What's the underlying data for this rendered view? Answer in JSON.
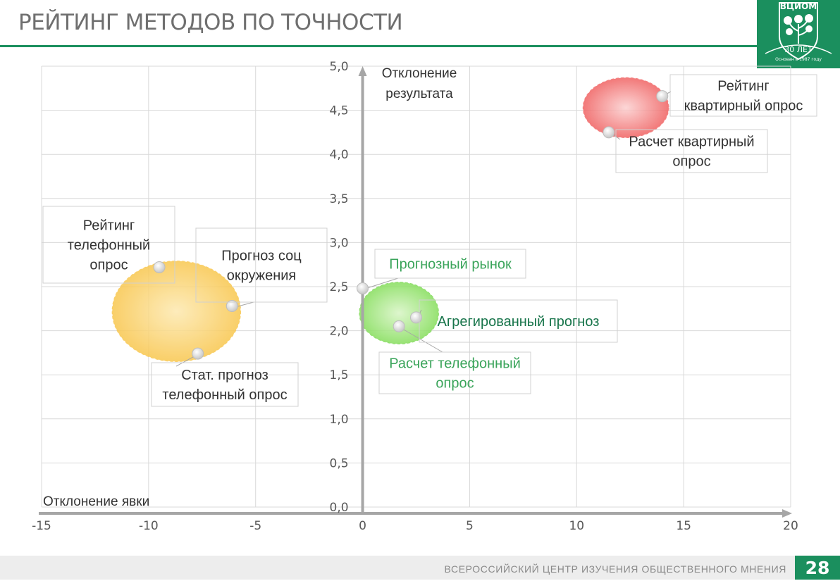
{
  "slide": {
    "title": "РЕЙТИНГ МЕТОДОВ ПО ТОЧНОСТИ",
    "logo_text": "ВЦИОМ",
    "logo_years": "30 ЛЕТ",
    "logo_founded": "Основан в 1987 году",
    "footer_text": "ВСЕРОССИЙСКИЙ ЦЕНТР ИЗУЧЕНИЯ ОБЩЕСТВЕННОГО МНЕНИЯ",
    "page_number": "28"
  },
  "colors": {
    "brand_green": "#1b8f5e",
    "label_green": "#3aa45a",
    "label_dark_green": "#17744a",
    "label_dark": "#333333",
    "axis": "#a6a6a6",
    "grid": "#d9d9d9"
  },
  "chart_data": {
    "type": "scatter",
    "xlabel": "Отклонение явки",
    "ylabel": "Отклонение результата",
    "xlim": [
      -15,
      20
    ],
    "ylim": [
      0,
      5
    ],
    "x_ticks": [
      "-15",
      "-10",
      "-5",
      "0",
      "5",
      "10",
      "15",
      "20"
    ],
    "y_ticks": [
      "0,0",
      "0,5",
      "1,0",
      "1,5",
      "2,0",
      "2,5",
      "3,0",
      "3,5",
      "4,0",
      "4,5",
      "5,0"
    ],
    "grid": true,
    "points": [
      {
        "label": "Рейтинг телефонный опрос",
        "x": -9.5,
        "y": 2.72,
        "group": "phone"
      },
      {
        "label": "Прогноз соц окружения",
        "x": -6.1,
        "y": 2.28,
        "group": "phone"
      },
      {
        "label": "Стат. прогноз телефонный опрос",
        "x": -7.7,
        "y": 1.74,
        "group": "phone"
      },
      {
        "label": "Прогнозный рынок",
        "x": 0.0,
        "y": 2.48,
        "group": "market"
      },
      {
        "label": "Агрегированный прогноз",
        "x": 2.5,
        "y": 2.15,
        "group": "market"
      },
      {
        "label": "Расчет телефонный опрос",
        "x": 1.7,
        "y": 2.05,
        "group": "market"
      },
      {
        "label": "Рейтинг квартирный опрос",
        "x": 14.0,
        "y": 4.66,
        "group": "door"
      },
      {
        "label": "Расчет квартирный опрос",
        "x": 11.5,
        "y": 4.25,
        "group": "door"
      }
    ],
    "clusters": [
      {
        "group": "phone",
        "color": "#f9c74f",
        "cx": -8.7,
        "cy": 2.22,
        "rx": 3.0,
        "ry": 0.57
      },
      {
        "group": "market",
        "color": "#7ed957",
        "cx": 1.7,
        "cy": 2.2,
        "rx": 1.85,
        "ry": 0.35
      },
      {
        "group": "door",
        "color": "#f36c6c",
        "cx": 12.3,
        "cy": 4.53,
        "rx": 2.0,
        "ry": 0.34
      }
    ]
  }
}
